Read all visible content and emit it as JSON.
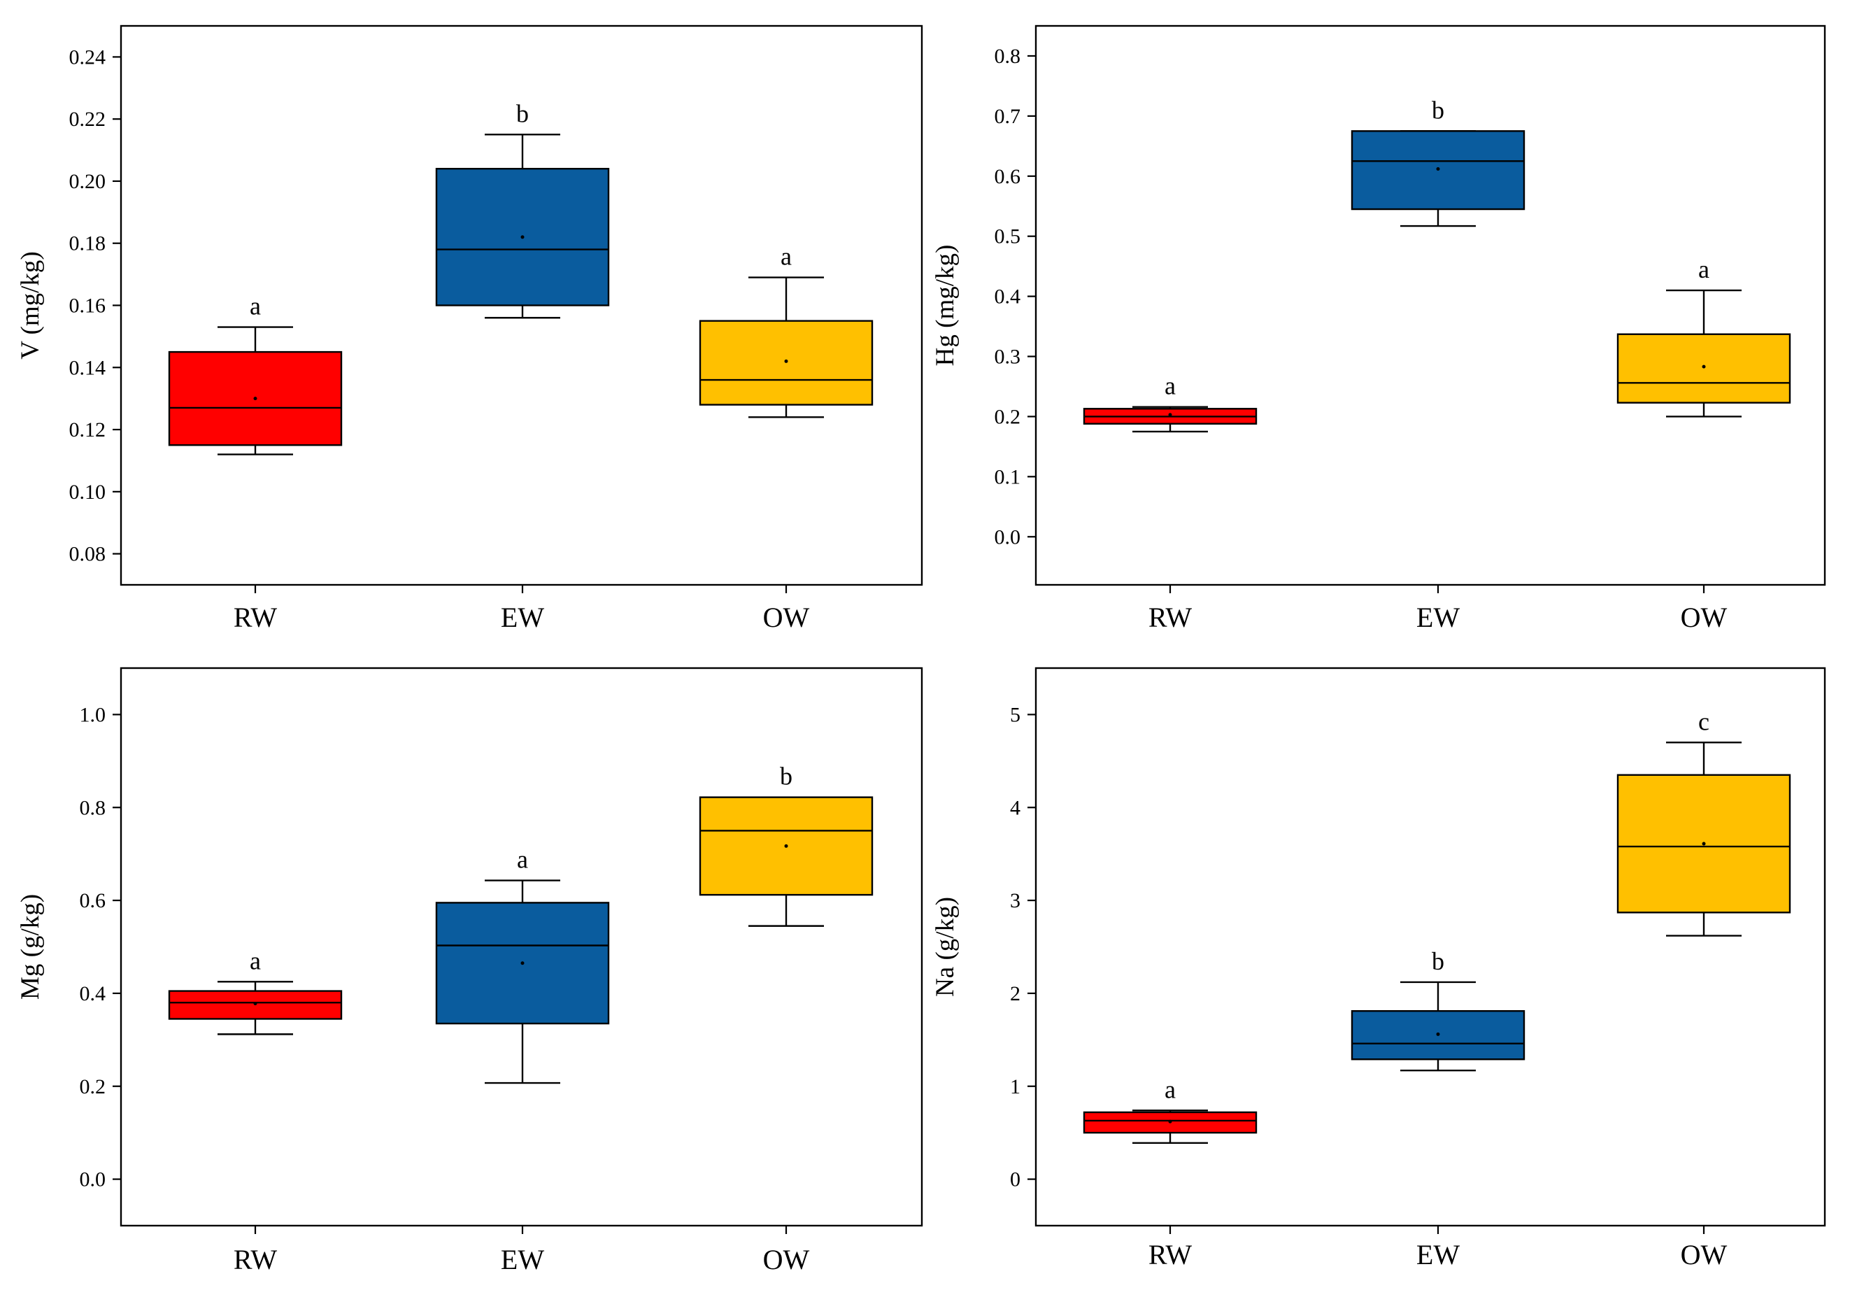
{
  "chart_data": [
    {
      "type": "box",
      "title": "",
      "xlabel": "",
      "ylabel": "V (mg/kg)",
      "ylim": [
        0.07,
        0.25
      ],
      "yticks": [
        0.08,
        0.1,
        0.12,
        0.14,
        0.16,
        0.18,
        0.2,
        0.22,
        0.24
      ],
      "ytick_labels": [
        "0.08",
        "0.10",
        "0.12",
        "0.14",
        "0.16",
        "0.18",
        "0.20",
        "0.22",
        "0.24"
      ],
      "categories": [
        "RW",
        "EW",
        "OW"
      ],
      "colors": [
        "#ff0000",
        "#0a5c9e",
        "#ffc000"
      ],
      "boxes": [
        {
          "category": "RW",
          "min": 0.112,
          "q1": 0.115,
          "median": 0.127,
          "q3": 0.145,
          "max": 0.153,
          "mean": 0.13,
          "sig": "a"
        },
        {
          "category": "EW",
          "min": 0.156,
          "q1": 0.16,
          "median": 0.178,
          "q3": 0.204,
          "max": 0.215,
          "mean": 0.182,
          "sig": "b"
        },
        {
          "category": "OW",
          "min": 0.124,
          "q1": 0.128,
          "median": 0.136,
          "q3": 0.155,
          "max": 0.169,
          "mean": 0.142,
          "sig": "a"
        }
      ]
    },
    {
      "type": "box",
      "title": "",
      "xlabel": "",
      "ylabel": "Hg (mg/kg)",
      "ylim": [
        -0.08,
        0.85
      ],
      "yticks": [
        0.0,
        0.1,
        0.2,
        0.3,
        0.4,
        0.5,
        0.6,
        0.7,
        0.8
      ],
      "ytick_labels": [
        "0.0",
        "0.1",
        "0.2",
        "0.3",
        "0.4",
        "0.5",
        "0.6",
        "0.7",
        "0.8"
      ],
      "categories": [
        "RW",
        "EW",
        "OW"
      ],
      "colors": [
        "#ff0000",
        "#0a5c9e",
        "#ffc000"
      ],
      "boxes": [
        {
          "category": "RW",
          "min": 0.175,
          "q1": 0.188,
          "median": 0.2,
          "q3": 0.213,
          "max": 0.216,
          "mean": 0.203,
          "sig": "a"
        },
        {
          "category": "EW",
          "min": 0.517,
          "q1": 0.545,
          "median": 0.625,
          "q3": 0.675,
          "max": 0.675,
          "mean": 0.612,
          "sig": "b"
        },
        {
          "category": "OW",
          "min": 0.2,
          "q1": 0.223,
          "median": 0.256,
          "q3": 0.337,
          "max": 0.41,
          "mean": 0.283,
          "sig": "a"
        }
      ]
    },
    {
      "type": "box",
      "title": "",
      "xlabel": "",
      "ylabel": "Mg (g/kg)",
      "ylim": [
        -0.1,
        1.1
      ],
      "yticks": [
        0.0,
        0.2,
        0.4,
        0.6,
        0.8,
        1.0
      ],
      "ytick_labels": [
        "0.0",
        "0.2",
        "0.4",
        "0.6",
        "0.8",
        "1.0"
      ],
      "categories": [
        "RW",
        "EW",
        "OW"
      ],
      "colors": [
        "#ff0000",
        "#0a5c9e",
        "#ffc000"
      ],
      "boxes": [
        {
          "category": "RW",
          "min": 0.312,
          "q1": 0.345,
          "median": 0.38,
          "q3": 0.405,
          "max": 0.425,
          "mean": 0.378,
          "sig": "a"
        },
        {
          "category": "EW",
          "min": 0.207,
          "q1": 0.335,
          "median": 0.503,
          "q3": 0.595,
          "max": 0.643,
          "mean": 0.465,
          "sig": "a"
        },
        {
          "category": "OW",
          "min": 0.545,
          "q1": 0.612,
          "median": 0.75,
          "q3": 0.822,
          "max": 0.822,
          "mean": 0.717,
          "sig": "b"
        }
      ]
    },
    {
      "type": "box",
      "title": "",
      "xlabel": "",
      "ylabel": "Na (g/kg)",
      "ylim": [
        -0.5,
        5.5
      ],
      "yticks": [
        0,
        1,
        2,
        3,
        4,
        5
      ],
      "ytick_labels": [
        "0",
        "1",
        "2",
        "3",
        "4",
        "5"
      ],
      "categories": [
        "RW",
        "EW",
        "OW"
      ],
      "colors": [
        "#ff0000",
        "#0a5c9e",
        "#ffc000"
      ],
      "boxes": [
        {
          "category": "RW",
          "min": 0.39,
          "q1": 0.5,
          "median": 0.63,
          "q3": 0.72,
          "max": 0.74,
          "mean": 0.62,
          "sig": "a"
        },
        {
          "category": "EW",
          "min": 1.17,
          "q1": 1.29,
          "median": 1.46,
          "q3": 1.81,
          "max": 2.12,
          "mean": 1.56,
          "sig": "b"
        },
        {
          "category": "OW",
          "min": 2.62,
          "q1": 2.87,
          "median": 3.58,
          "q3": 4.35,
          "max": 4.7,
          "mean": 3.61,
          "sig": "c"
        }
      ]
    }
  ]
}
